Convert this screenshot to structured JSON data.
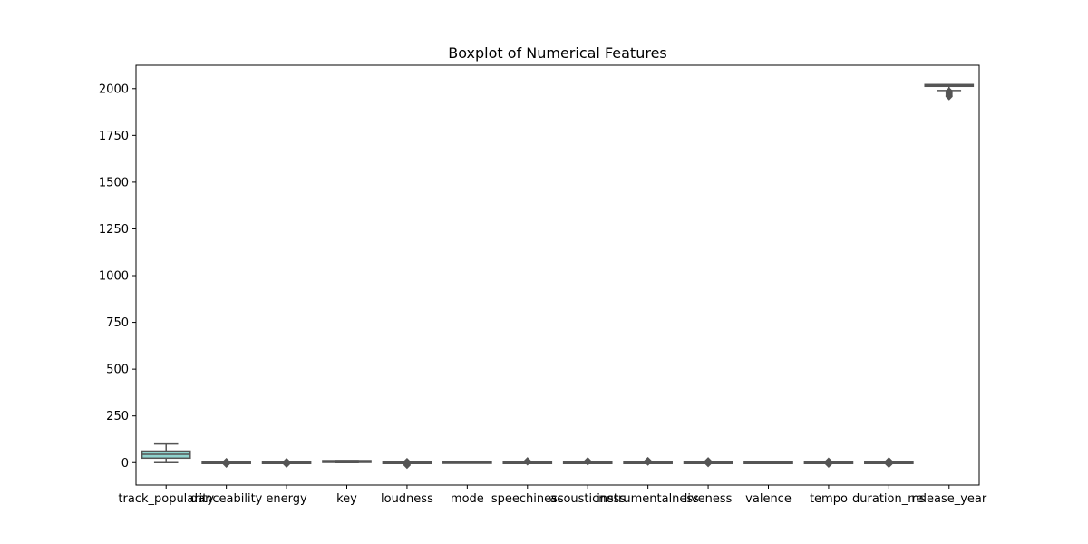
{
  "chart_data": {
    "type": "boxplot",
    "title": "Boxplot of Numerical Features",
    "xlabel": "",
    "ylabel": "",
    "ylim": [
      -120,
      2125
    ],
    "yticks": [
      0,
      250,
      500,
      750,
      1000,
      1250,
      1500,
      1750,
      2000
    ],
    "categories": [
      "track_popularity",
      "danceability",
      "energy",
      "key",
      "loudness",
      "mode",
      "speechiness",
      "acousticness",
      "instrumentalness",
      "liveness",
      "valence",
      "tempo",
      "duration_ms",
      "release_year"
    ],
    "colors": {
      "box_fill": "#8fd3ce",
      "box_edge": "#555555",
      "median": "#555555",
      "outlier": "#555555"
    },
    "boxes": [
      {
        "category": "track_popularity",
        "whisker_low": 0,
        "q1": 24,
        "median": 45,
        "q3": 62,
        "whisker_high": 100,
        "outliers": []
      },
      {
        "category": "danceability",
        "whisker_low": -3,
        "q1": -2,
        "median": 0,
        "q3": 2,
        "whisker_high": 3,
        "outliers": [
          -8,
          -6,
          -4,
          4,
          6
        ]
      },
      {
        "category": "energy",
        "whisker_low": -3,
        "q1": -2,
        "median": 0,
        "q3": 2,
        "whisker_high": 3,
        "outliers": [
          -8,
          -6,
          -4,
          4,
          6
        ]
      },
      {
        "category": "key",
        "whisker_low": 0,
        "q1": 2,
        "median": 6,
        "q3": 9,
        "whisker_high": 11,
        "outliers": []
      },
      {
        "category": "loudness",
        "whisker_low": -3,
        "q1": -2,
        "median": 0,
        "q3": 2,
        "whisker_high": 3,
        "outliers": [
          -14,
          -11,
          -8,
          -6,
          -4,
          4,
          6
        ]
      },
      {
        "category": "mode",
        "whisker_low": 0,
        "q1": 0,
        "median": 1,
        "q3": 1,
        "whisker_high": 1,
        "outliers": []
      },
      {
        "category": "speechiness",
        "whisker_low": -2,
        "q1": -1,
        "median": 0,
        "q3": 1,
        "whisker_high": 3,
        "outliers": [
          4,
          6,
          8,
          10
        ]
      },
      {
        "category": "acousticness",
        "whisker_low": -2,
        "q1": -1,
        "median": 0,
        "q3": 1,
        "whisker_high": 3,
        "outliers": [
          4,
          6,
          8,
          10
        ]
      },
      {
        "category": "instrumentalness",
        "whisker_low": -2,
        "q1": -1,
        "median": 0,
        "q3": 1,
        "whisker_high": 2,
        "outliers": [
          3,
          5,
          7,
          9,
          11
        ]
      },
      {
        "category": "liveness",
        "whisker_low": -2,
        "q1": -1,
        "median": 0,
        "q3": 1,
        "whisker_high": 3,
        "outliers": [
          -5,
          4,
          6,
          8,
          10
        ]
      },
      {
        "category": "valence",
        "whisker_low": -3,
        "q1": -2,
        "median": 0,
        "q3": 2,
        "whisker_high": 3,
        "outliers": []
      },
      {
        "category": "tempo",
        "whisker_low": -3,
        "q1": -2,
        "median": 0,
        "q3": 2,
        "whisker_high": 3,
        "outliers": [
          -8,
          -6,
          -4,
          4,
          6,
          8
        ]
      },
      {
        "category": "duration_ms",
        "whisker_low": -3,
        "q1": -2,
        "median": 0,
        "q3": 2,
        "whisker_high": 3,
        "outliers": [
          -9,
          -7,
          -5,
          4,
          6,
          8,
          10
        ]
      },
      {
        "category": "release_year",
        "whisker_low": 1990,
        "q1": 2012,
        "median": 2017,
        "q3": 2020,
        "whisker_high": 2020,
        "outliers": [
          1988,
          1984,
          1980,
          1976,
          1972,
          1968,
          1964,
          1960,
          1957
        ]
      }
    ]
  }
}
